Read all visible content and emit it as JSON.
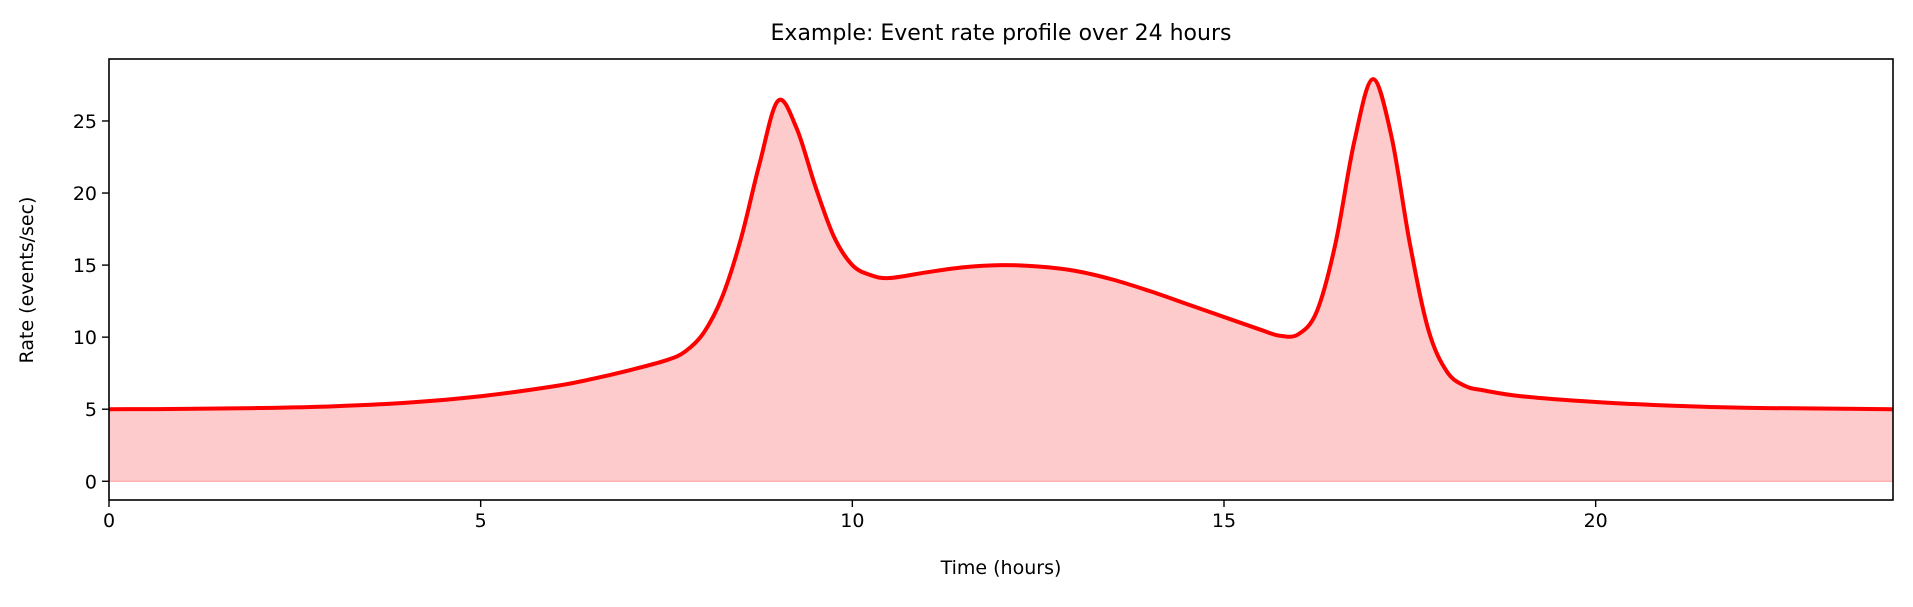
{
  "chart_data": {
    "type": "area",
    "title": "Example: Event rate profile over 24 hours",
    "xlabel": "Time (hours)",
    "ylabel": "Rate (events/sec)",
    "xlim": [
      0,
      24
    ],
    "ylim": [
      -1.3,
      29.3
    ],
    "xticks": [
      0,
      5,
      10,
      15,
      20
    ],
    "xtick_labels": [
      "0",
      "5",
      "10",
      "15",
      "20"
    ],
    "yticks": [
      0,
      5,
      10,
      15,
      20,
      25
    ],
    "ytick_labels": [
      "0",
      "5",
      "10",
      "15",
      "20",
      "25"
    ],
    "grid": false,
    "line_color": "#ff0000",
    "fill_color": "#fdcbcb",
    "series": [
      {
        "name": "rate",
        "x": [
          0,
          1,
          2,
          3,
          4,
          5,
          6,
          6.5,
          7,
          7.5,
          7.75,
          8,
          8.25,
          8.5,
          8.75,
          9,
          9.25,
          9.5,
          9.75,
          10,
          10.25,
          10.5,
          11,
          11.5,
          12,
          12.5,
          13,
          13.5,
          14,
          14.5,
          15,
          15.5,
          15.75,
          16,
          16.25,
          16.5,
          16.75,
          17,
          17.25,
          17.5,
          17.75,
          18,
          18.25,
          18.5,
          19,
          20,
          21,
          22,
          23,
          24
        ],
        "y": [
          5.0,
          5.02,
          5.08,
          5.2,
          5.45,
          5.9,
          6.6,
          7.1,
          7.7,
          8.4,
          9.0,
          10.3,
          12.8,
          16.8,
          22.0,
          26.4,
          24.5,
          20.5,
          17.0,
          15.0,
          14.3,
          14.1,
          14.5,
          14.85,
          15.0,
          14.9,
          14.6,
          14.0,
          13.2,
          12.3,
          11.4,
          10.5,
          10.1,
          10.2,
          11.8,
          16.5,
          23.5,
          27.9,
          24.0,
          16.5,
          10.5,
          7.6,
          6.6,
          6.3,
          5.9,
          5.5,
          5.25,
          5.1,
          5.05,
          5.0
        ]
      }
    ]
  }
}
